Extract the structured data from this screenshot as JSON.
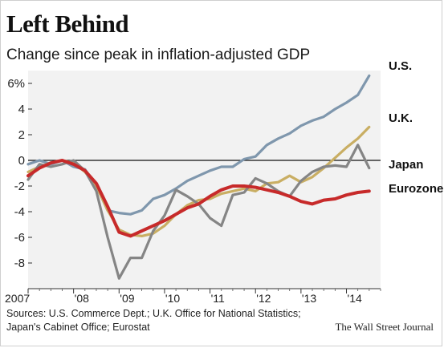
{
  "header": {
    "title": "Left Behind",
    "subtitle": "Change since peak in inflation-adjusted GDP"
  },
  "footer": {
    "source_line1": "Sources: U.S. Commerce Dept.; U.K. Office for National Statistics;",
    "source_line2": "Japan's Cabinet Office; Eurostat",
    "credit": "The Wall Street Journal"
  },
  "chart_data": {
    "type": "line",
    "title": "Left Behind",
    "subtitle": "Change since peak in inflation-adjusted GDP",
    "ylim": [
      -10,
      7
    ],
    "yticks": [
      6,
      4,
      2,
      0,
      -2,
      -4,
      -6,
      -8
    ],
    "ytick_labels": [
      "6%",
      "4",
      "2",
      "0",
      "-2",
      "-4",
      "-6",
      "-8"
    ],
    "xlim": [
      2007.0,
      2014.75
    ],
    "xticks": [
      2007,
      2008,
      2009,
      2010,
      2011,
      2012,
      2013,
      2014
    ],
    "xtick_labels": [
      "2007",
      "'08",
      "'09",
      "'10",
      "'11",
      "'12",
      "'13",
      "'14"
    ],
    "plot_background": "#f2f2f2",
    "zero_line": true,
    "series": [
      {
        "name": "U.S.",
        "color": "#7f97ad",
        "x": [
          2007.0,
          2007.25,
          2007.5,
          2007.75,
          2008.0,
          2008.25,
          2008.5,
          2008.75,
          2009.0,
          2009.25,
          2009.5,
          2009.75,
          2010.0,
          2010.25,
          2010.5,
          2010.75,
          2011.0,
          2011.25,
          2011.5,
          2011.75,
          2012.0,
          2012.25,
          2012.5,
          2012.75,
          2013.0,
          2013.25,
          2013.5,
          2013.75,
          2014.0,
          2014.25,
          2014.5
        ],
        "values": [
          -0.3,
          0.0,
          -0.3,
          0.0,
          -0.5,
          -0.7,
          -2.0,
          -3.9,
          -4.1,
          -4.2,
          -3.9,
          -3.0,
          -2.7,
          -2.2,
          -1.6,
          -1.2,
          -0.8,
          -0.5,
          -0.5,
          0.1,
          0.3,
          1.2,
          1.7,
          2.1,
          2.7,
          3.1,
          3.4,
          4.0,
          4.5,
          5.1,
          6.6
        ]
      },
      {
        "name": "U.K.",
        "color": "#c9ae63",
        "x": [
          2007.0,
          2007.25,
          2007.5,
          2007.75,
          2008.0,
          2008.25,
          2008.5,
          2008.75,
          2009.0,
          2009.25,
          2009.5,
          2009.75,
          2010.0,
          2010.25,
          2010.5,
          2010.75,
          2011.0,
          2011.25,
          2011.5,
          2011.75,
          2012.0,
          2012.25,
          2012.5,
          2012.75,
          2013.0,
          2013.25,
          2013.5,
          2013.75,
          2014.0,
          2014.25,
          2014.5
        ],
        "values": [
          -0.9,
          -0.5,
          -0.2,
          0.0,
          -0.2,
          -0.9,
          -2.0,
          -3.9,
          -5.4,
          -5.8,
          -5.9,
          -5.7,
          -5.1,
          -4.2,
          -3.5,
          -3.1,
          -3.0,
          -2.6,
          -2.4,
          -2.2,
          -2.4,
          -1.8,
          -1.7,
          -1.2,
          -1.7,
          -1.3,
          -0.6,
          0.2,
          1.0,
          1.7,
          2.6
        ]
      },
      {
        "name": "Japan",
        "color": "#858585",
        "x": [
          2007.0,
          2007.25,
          2007.5,
          2007.75,
          2008.0,
          2008.25,
          2008.5,
          2008.75,
          2009.0,
          2009.25,
          2009.5,
          2009.75,
          2010.0,
          2010.25,
          2010.5,
          2010.75,
          2011.0,
          2011.25,
          2011.5,
          2011.75,
          2012.0,
          2012.25,
          2012.5,
          2012.75,
          2013.0,
          2013.25,
          2013.5,
          2013.75,
          2014.0,
          2014.25,
          2014.5
        ],
        "values": [
          -1.5,
          -0.3,
          -0.5,
          -0.3,
          0.0,
          -0.8,
          -2.4,
          -6.0,
          -9.2,
          -7.6,
          -7.6,
          -5.5,
          -4.3,
          -2.3,
          -2.8,
          -3.4,
          -4.5,
          -5.1,
          -2.7,
          -2.5,
          -1.4,
          -1.8,
          -2.4,
          -2.8,
          -1.6,
          -0.9,
          -0.5,
          -0.4,
          -0.5,
          1.2,
          -0.6
        ]
      },
      {
        "name": "Eurozone",
        "color": "#c72a2a",
        "x": [
          2007.0,
          2007.25,
          2007.5,
          2007.75,
          2008.0,
          2008.25,
          2008.5,
          2008.75,
          2009.0,
          2009.25,
          2009.5,
          2009.75,
          2010.0,
          2010.25,
          2010.5,
          2010.75,
          2011.0,
          2011.25,
          2011.5,
          2011.75,
          2012.0,
          2012.25,
          2012.5,
          2012.75,
          2013.0,
          2013.25,
          2013.5,
          2013.75,
          2014.0,
          2014.25,
          2014.5
        ],
        "values": [
          -1.2,
          -0.6,
          -0.2,
          0.0,
          -0.3,
          -0.8,
          -1.8,
          -3.6,
          -5.6,
          -5.9,
          -5.5,
          -5.1,
          -4.7,
          -4.2,
          -3.7,
          -3.4,
          -2.8,
          -2.3,
          -2.0,
          -2.0,
          -2.1,
          -2.3,
          -2.5,
          -2.8,
          -3.2,
          -3.4,
          -3.1,
          -3.0,
          -2.7,
          -2.5,
          -2.4
        ]
      }
    ]
  }
}
